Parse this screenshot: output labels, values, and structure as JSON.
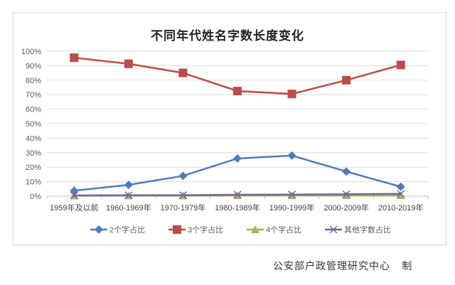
{
  "chart_data": {
    "type": "line",
    "title": "不同年代姓名字数长度变化",
    "xlabel": "",
    "ylabel": "",
    "ylim": [
      0,
      100
    ],
    "y_ticks": [
      "0%",
      "10%",
      "20%",
      "30%",
      "40%",
      "50%",
      "60%",
      "70%",
      "80%",
      "90%",
      "100%"
    ],
    "grid": true,
    "legend_position": "bottom",
    "categories": [
      "1959年及以前",
      "1960-1969年",
      "1970-1979年",
      "1980-1989年",
      "1990-1999年",
      "2000-2009年",
      "2010-2019年"
    ],
    "series": [
      {
        "name": "2个字占比",
        "color": "#4a7ebb",
        "marker": "diamond",
        "values": [
          3.8,
          7.8,
          14.0,
          26.0,
          28.0,
          17.0,
          6.5
        ]
      },
      {
        "name": "3个字占比",
        "color": "#be4b48",
        "marker": "square",
        "values": [
          95.5,
          91.3,
          85.0,
          72.5,
          70.5,
          80.0,
          90.5
        ]
      },
      {
        "name": "4个字占比",
        "color": "#98b954",
        "marker": "triangle",
        "values": [
          0.3,
          0.3,
          0.3,
          0.4,
          0.4,
          0.5,
          0.5
        ]
      },
      {
        "name": "其他字数占比",
        "color": "#7d60a0",
        "marker": "x",
        "values": [
          0.5,
          0.6,
          0.7,
          1.0,
          1.1,
          1.3,
          1.6
        ]
      }
    ]
  },
  "credit": "公安部户政管理研究中心   制"
}
